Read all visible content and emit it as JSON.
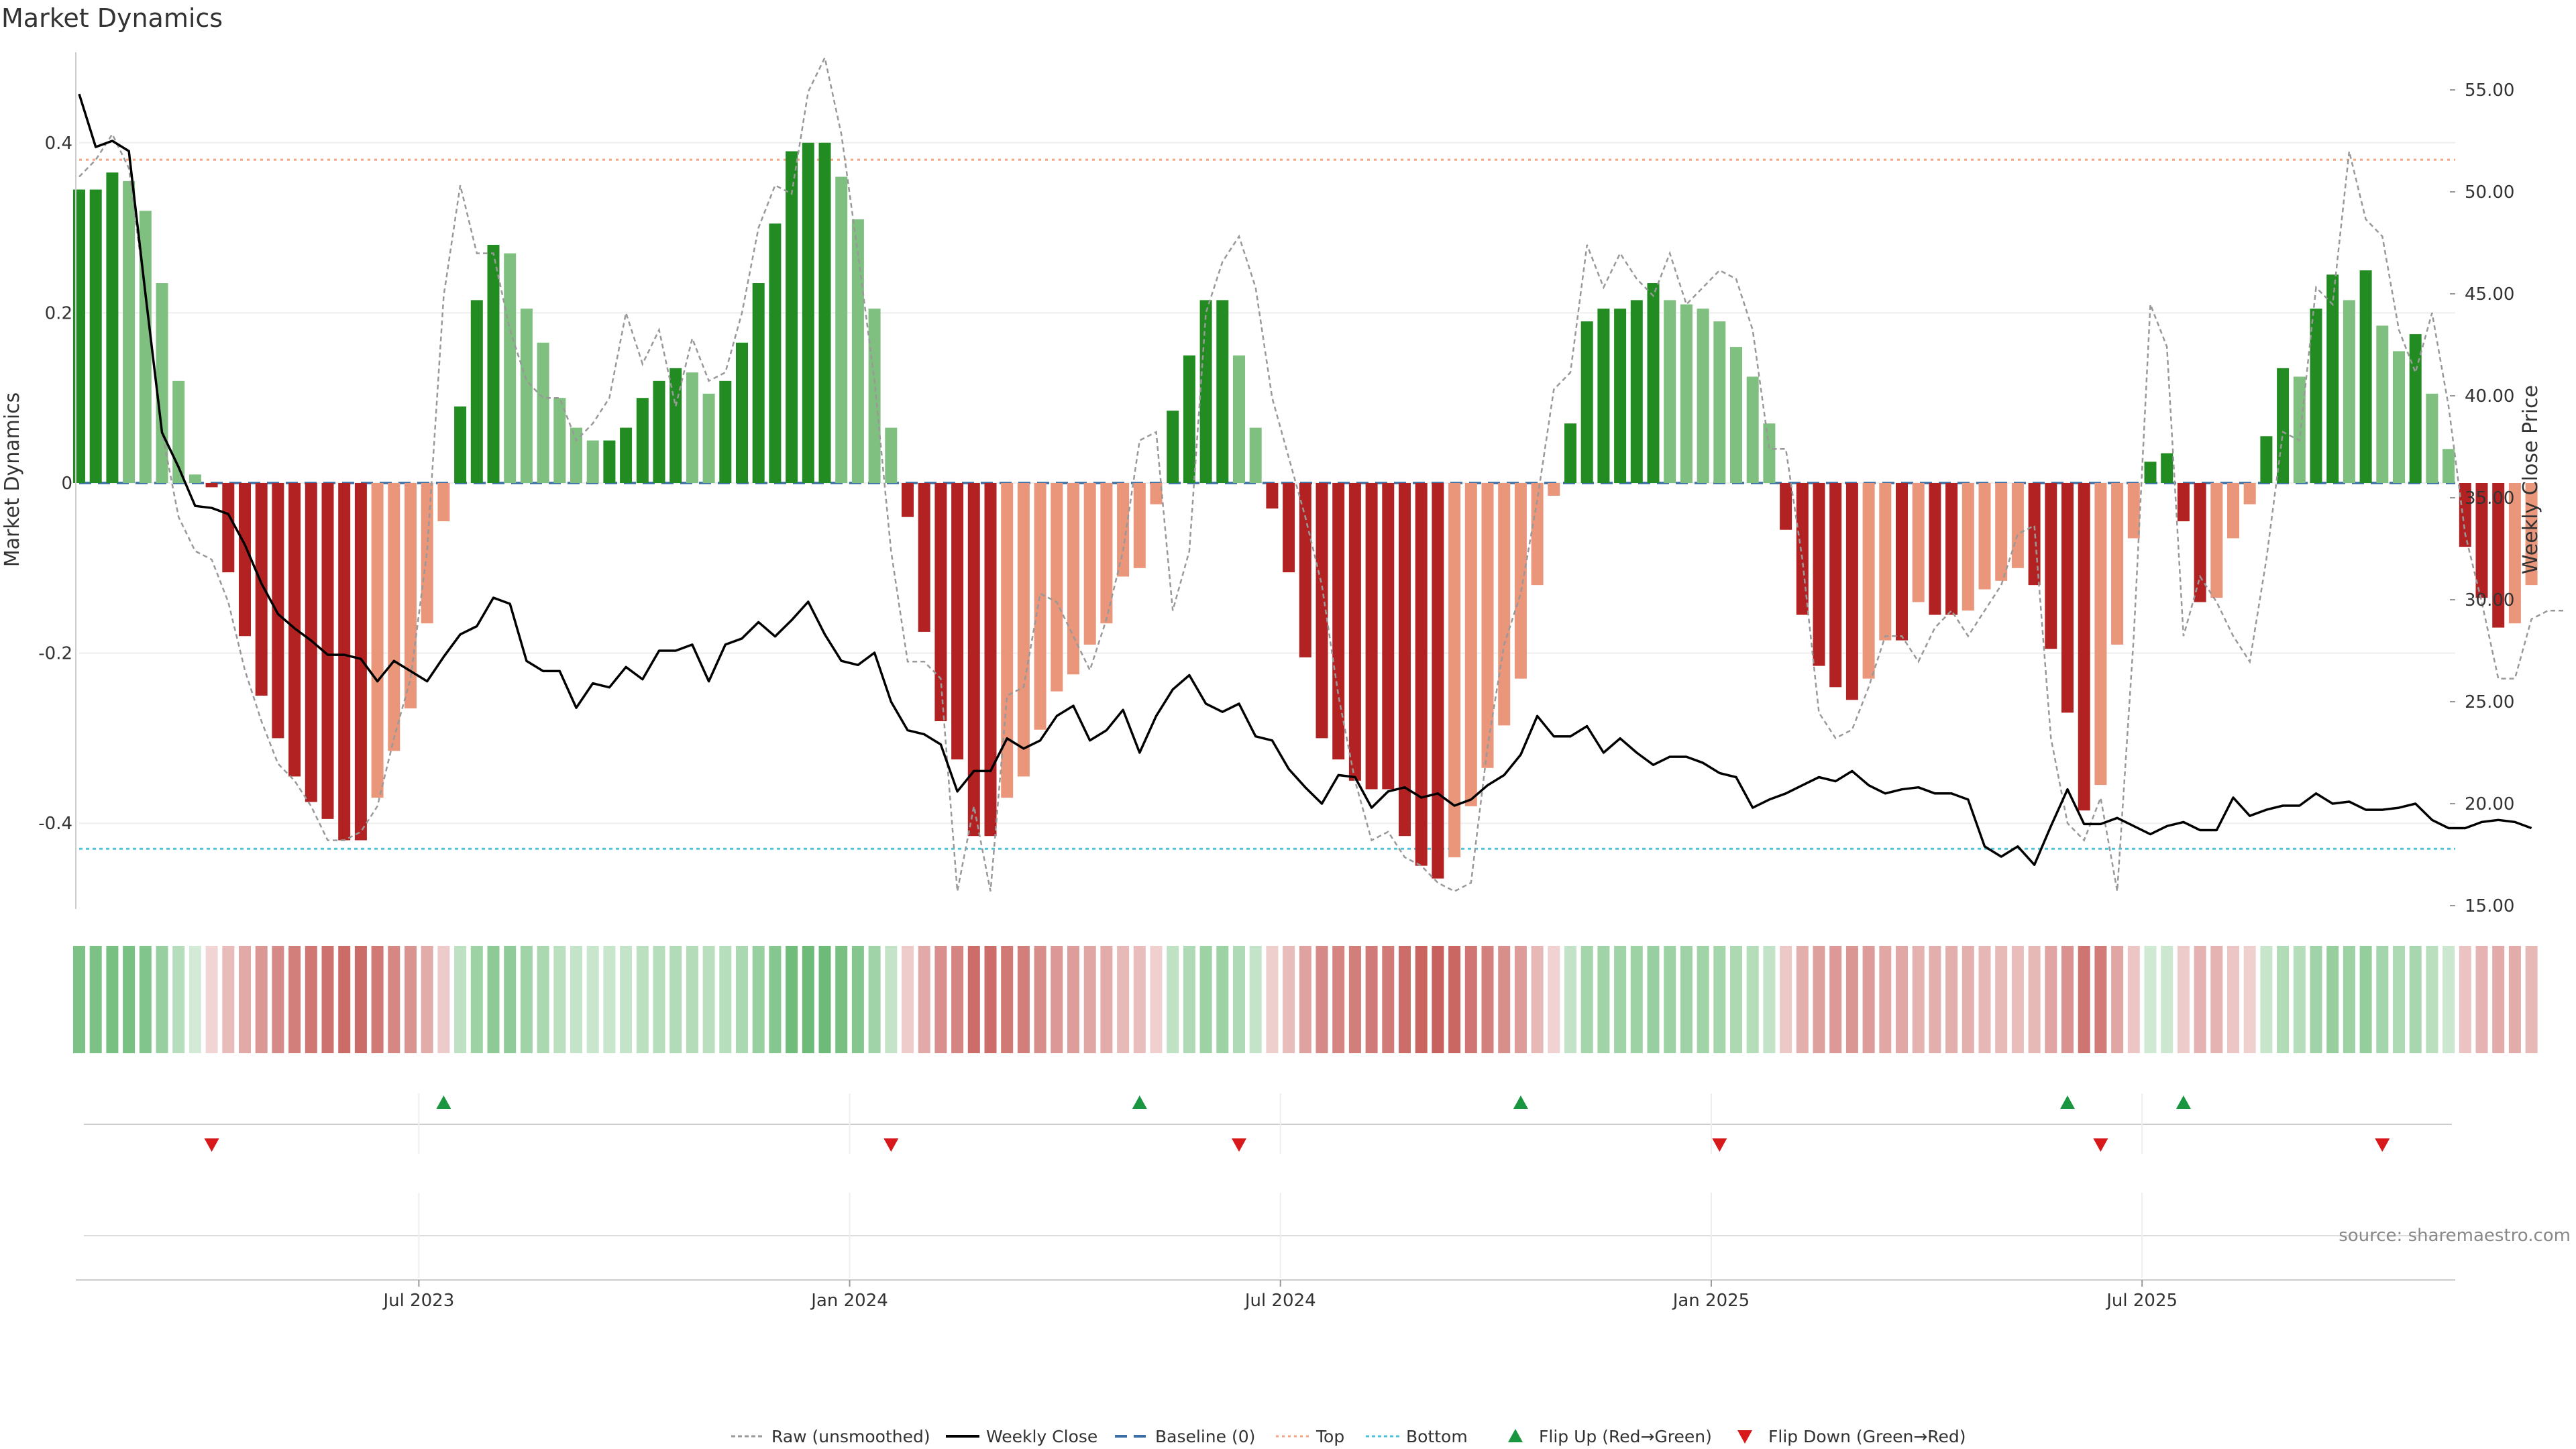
{
  "chart_data": {
    "type": "bar",
    "title": "Market Dynamics",
    "ylabel_left": "Market Dynamics",
    "ylabel_right": "Weekly Close Price",
    "source": "source: sharemaestro.com",
    "left_ylim": [
      -0.5,
      0.5
    ],
    "left_ticks": [
      {
        "v": 0.4,
        "label": "0.4"
      },
      {
        "v": 0.2,
        "label": "0.2"
      },
      {
        "v": 0,
        "label": "0"
      },
      {
        "v": -0.2,
        "label": "-0.2"
      },
      {
        "v": -0.4,
        "label": "-0.4"
      }
    ],
    "right_ylim": [
      15,
      56.8
    ],
    "right_ticks": [
      {
        "v": 55,
        "label": "55.00"
      },
      {
        "v": 50,
        "label": "50.00"
      },
      {
        "v": 45,
        "label": "45.00"
      },
      {
        "v": 40,
        "label": "40.00"
      },
      {
        "v": 35,
        "label": "35.00"
      },
      {
        "v": 30,
        "label": "30.00"
      },
      {
        "v": 25,
        "label": "25.00"
      },
      {
        "v": 20,
        "label": "20.00"
      },
      {
        "v": 15,
        "label": "15.00"
      }
    ],
    "x_ticks": [
      {
        "i": 20.5,
        "label": "Jul 2023"
      },
      {
        "i": 46.5,
        "label": "Jan 2024"
      },
      {
        "i": 72.5,
        "label": "Jul 2024"
      },
      {
        "i": 98.5,
        "label": "Jan 2025"
      },
      {
        "i": 124.5,
        "label": "Jul 2025"
      }
    ],
    "top_level": 0.38,
    "bottom_level": -0.43,
    "baseline": 0,
    "colors": {
      "strong_green": "#228b22",
      "light_green": "#7fbf7f",
      "strong_red": "#b22222",
      "light_red": "#e9967a",
      "close_line": "#000000",
      "raw_line": "#999999",
      "baseline": "#3b6ea5",
      "top": "#f4a582",
      "bottom": "#4fc3d9",
      "flip_up": "#1a9641",
      "flip_down": "#d7191c"
    },
    "dynamics": [
      0.345,
      0.345,
      0.365,
      0.355,
      0.32,
      0.235,
      0.12,
      0.01,
      -0.005,
      -0.105,
      -0.18,
      -0.25,
      -0.3,
      -0.345,
      -0.375,
      -0.395,
      -0.42,
      -0.42,
      -0.37,
      -0.315,
      -0.265,
      -0.165,
      -0.045,
      0.09,
      0.215,
      0.28,
      0.27,
      0.205,
      0.165,
      0.1,
      0.065,
      0.05,
      0.05,
      0.065,
      0.1,
      0.12,
      0.135,
      0.13,
      0.105,
      0.12,
      0.165,
      0.235,
      0.305,
      0.39,
      0.4,
      0.4,
      0.36,
      0.31,
      0.205,
      0.065,
      -0.04,
      -0.175,
      -0.28,
      -0.325,
      -0.415,
      -0.415,
      -0.37,
      -0.345,
      -0.29,
      -0.245,
      -0.225,
      -0.19,
      -0.165,
      -0.11,
      -0.1,
      -0.025,
      0.085,
      0.15,
      0.215,
      0.215,
      0.15,
      0.065,
      -0.03,
      -0.105,
      -0.205,
      -0.3,
      -0.325,
      -0.35,
      -0.36,
      -0.36,
      -0.415,
      -0.45,
      -0.465,
      -0.44,
      -0.38,
      -0.335,
      -0.285,
      -0.23,
      -0.12,
      -0.015,
      0.07,
      0.19,
      0.205,
      0.205,
      0.215,
      0.235,
      0.215,
      0.21,
      0.205,
      0.19,
      0.16,
      0.125,
      0.07,
      -0.055,
      -0.155,
      -0.215,
      -0.24,
      -0.255,
      -0.23,
      -0.185,
      -0.185,
      -0.14,
      -0.155,
      -0.155,
      -0.15,
      -0.125,
      -0.115,
      -0.1,
      -0.12,
      -0.195,
      -0.27,
      -0.385,
      -0.355,
      -0.19,
      -0.065,
      0.025,
      0.035,
      -0.045,
      -0.14,
      -0.135,
      -0.065,
      -0.025,
      0.055,
      0.135,
      0.125,
      0.205,
      0.245,
      0.215,
      0.25,
      0.185,
      0.155,
      0.175,
      0.105,
      0.04,
      -0.075,
      -0.135,
      -0.17,
      -0.165,
      -0.12
    ],
    "close": [
      54.8,
      52.2,
      52.5,
      52.0,
      45.0,
      38.2,
      36.5,
      34.6,
      34.5,
      34.2,
      32.7,
      30.8,
      29.3,
      28.6,
      28.0,
      27.3,
      27.3,
      27.1,
      26.0,
      27.0,
      26.5,
      26.0,
      27.2,
      28.3,
      28.7,
      30.1,
      29.8,
      27.0,
      26.5,
      26.5,
      24.7,
      25.9,
      25.7,
      26.7,
      26.1,
      27.5,
      27.5,
      27.8,
      26.0,
      27.8,
      28.1,
      28.9,
      28.2,
      29.0,
      29.9,
      28.3,
      27.0,
      26.8,
      27.4,
      25.0,
      23.6,
      23.4,
      22.9,
      20.6,
      21.6,
      21.6,
      23.2,
      22.7,
      23.1,
      24.3,
      24.8,
      23.1,
      23.6,
      24.6,
      22.5,
      24.3,
      25.6,
      26.3,
      24.9,
      24.5,
      24.9,
      23.3,
      23.1,
      21.7,
      20.8,
      20.0,
      21.4,
      21.3,
      19.8,
      20.6,
      20.8,
      20.3,
      20.5,
      19.9,
      20.2,
      20.9,
      21.4,
      22.4,
      24.3,
      23.3,
      23.3,
      23.8,
      22.5,
      23.2,
      22.5,
      21.9,
      22.3,
      22.3,
      22.0,
      21.5,
      21.3,
      19.8,
      20.2,
      20.5,
      20.9,
      21.3,
      21.1,
      21.6,
      20.9,
      20.5,
      20.7,
      20.8,
      20.5,
      20.5,
      20.2,
      17.9,
      17.4,
      17.9,
      17.0,
      18.9,
      20.7,
      19.0,
      19.0,
      19.3,
      18.9,
      18.5,
      18.9,
      19.1,
      18.7,
      18.7,
      20.3,
      19.4,
      19.7,
      19.9,
      19.9,
      20.5,
      20.0,
      20.1,
      19.7,
      19.7,
      19.8,
      20.0,
      19.2,
      18.8,
      18.8,
      19.1,
      19.2,
      19.1,
      18.8
    ],
    "raw": [
      0.36,
      0.38,
      0.41,
      0.37,
      0.22,
      0.06,
      -0.04,
      -0.08,
      -0.09,
      -0.14,
      -0.22,
      -0.28,
      -0.33,
      -0.35,
      -0.38,
      -0.42,
      -0.42,
      -0.41,
      -0.38,
      -0.3,
      -0.23,
      -0.08,
      0.22,
      0.35,
      0.27,
      0.27,
      0.18,
      0.12,
      0.1,
      0.1,
      0.05,
      0.07,
      0.1,
      0.2,
      0.14,
      0.18,
      0.09,
      0.17,
      0.12,
      0.13,
      0.2,
      0.3,
      0.35,
      0.34,
      0.46,
      0.5,
      0.41,
      0.27,
      0.12,
      -0.08,
      -0.21,
      -0.21,
      -0.23,
      -0.48,
      -0.38,
      -0.48,
      -0.25,
      -0.24,
      -0.13,
      -0.14,
      -0.18,
      -0.22,
      -0.16,
      -0.08,
      0.05,
      0.06,
      -0.15,
      -0.08,
      0.2,
      0.26,
      0.29,
      0.23,
      0.1,
      0.03,
      -0.04,
      -0.12,
      -0.25,
      -0.35,
      -0.42,
      -0.41,
      -0.44,
      -0.45,
      -0.47,
      -0.48,
      -0.47,
      -0.31,
      -0.19,
      -0.13,
      -0.02,
      0.11,
      0.13,
      0.28,
      0.23,
      0.27,
      0.24,
      0.22,
      0.27,
      0.21,
      0.23,
      0.25,
      0.24,
      0.18,
      0.04,
      0.04,
      -0.09,
      -0.27,
      -0.3,
      -0.29,
      -0.24,
      -0.18,
      -0.18,
      -0.21,
      -0.17,
      -0.15,
      -0.18,
      -0.15,
      -0.12,
      -0.06,
      -0.05,
      -0.3,
      -0.4,
      -0.42,
      -0.37,
      -0.48,
      -0.18,
      0.21,
      0.16,
      -0.18,
      -0.11,
      -0.14,
      -0.18,
      -0.21,
      -0.09,
      0.06,
      0.05,
      0.23,
      0.21,
      0.39,
      0.31,
      0.29,
      0.18,
      0.13,
      0.2,
      0.09,
      -0.06,
      -0.14,
      -0.23,
      -0.23,
      -0.16,
      -0.15,
      -0.15
    ],
    "flip_up": [
      22,
      64,
      87,
      120,
      127
    ],
    "flip_down": [
      8,
      49,
      70,
      99,
      122,
      139
    ]
  },
  "legend": [
    {
      "label": "Raw (unsmoothed)",
      "kind": "raw"
    },
    {
      "label": "Weekly Close",
      "kind": "close"
    },
    {
      "label": "Baseline (0)",
      "kind": "baseline"
    },
    {
      "label": "Top",
      "kind": "top"
    },
    {
      "label": "Bottom",
      "kind": "bottom"
    },
    {
      "label": "Flip Up (Red→Green)",
      "kind": "up"
    },
    {
      "label": "Flip Down (Green→Red)",
      "kind": "down"
    }
  ]
}
